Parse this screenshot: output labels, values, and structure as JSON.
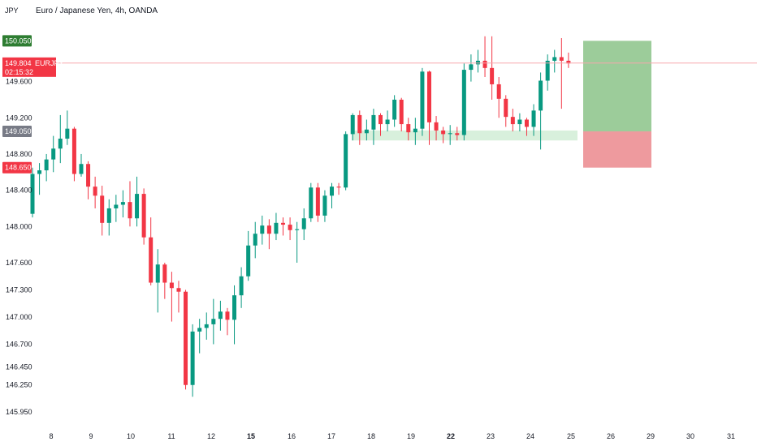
{
  "header": {
    "unit": "JPY",
    "title": "Euro / Japanese Yen, 4h, OANDA"
  },
  "colors": {
    "up": "#089981",
    "down": "#f23645",
    "zone": "#d8f0dc",
    "profit": "#9ccc9a",
    "loss": "#ee9a9e",
    "last_price_badge": "#f23645",
    "green_badge": "#2e7d32",
    "grey_badge": "#787b86"
  },
  "badges": {
    "target": {
      "value": "150.050",
      "price": 150.05
    },
    "last": {
      "value": "149.804",
      "symbol": "EURJPY",
      "countdown": "02:15:32",
      "price": 149.804
    },
    "entry": {
      "value": "149.050",
      "price": 149.05
    },
    "stop": {
      "value": "148.650",
      "price": 148.65
    }
  },
  "chart_data": {
    "type": "candlestick",
    "title": "Euro / Japanese Yen, 4h, OANDA",
    "ylabel": "JPY",
    "ylim": [
      145.8,
      150.25
    ],
    "y_ticks": [
      "145.950",
      "146.250",
      "146.450",
      "146.700",
      "147.000",
      "147.300",
      "147.600",
      "148.000",
      "148.400",
      "148.800",
      "149.200",
      "149.600"
    ],
    "x_ticks": [
      {
        "label": "8",
        "bold": false
      },
      {
        "label": "9",
        "bold": false
      },
      {
        "label": "10",
        "bold": false
      },
      {
        "label": "11",
        "bold": false
      },
      {
        "label": "12",
        "bold": false
      },
      {
        "label": "15",
        "bold": true
      },
      {
        "label": "16",
        "bold": false
      },
      {
        "label": "17",
        "bold": false
      },
      {
        "label": "18",
        "bold": false
      },
      {
        "label": "19",
        "bold": false
      },
      {
        "label": "22",
        "bold": true
      },
      {
        "label": "23",
        "bold": false
      },
      {
        "label": "24",
        "bold": false
      },
      {
        "label": "25",
        "bold": false
      },
      {
        "label": "26",
        "bold": false
      },
      {
        "label": "29",
        "bold": false
      },
      {
        "label": "30",
        "bold": false
      },
      {
        "label": "31",
        "bold": false
      }
    ],
    "candles": [
      [
        148.14,
        148.58,
        148.65,
        148.1
      ],
      [
        148.58,
        148.62,
        148.7,
        148.35
      ],
      [
        148.62,
        148.74,
        148.8,
        148.5
      ],
      [
        148.74,
        148.86,
        149.0,
        148.6
      ],
      [
        148.86,
        148.97,
        149.23,
        148.7
      ],
      [
        148.97,
        149.08,
        149.28,
        148.9
      ],
      [
        149.08,
        148.58,
        149.1,
        148.5
      ],
      [
        148.58,
        148.69,
        148.8,
        148.55
      ],
      [
        148.69,
        148.44,
        148.72,
        148.3
      ],
      [
        148.44,
        148.34,
        148.55,
        148.2
      ],
      [
        148.34,
        148.04,
        148.45,
        147.9
      ],
      [
        148.04,
        148.2,
        148.3,
        147.9
      ],
      [
        148.2,
        148.24,
        148.35,
        148.05
      ],
      [
        148.24,
        148.27,
        148.4,
        148.1
      ],
      [
        148.27,
        148.09,
        148.5,
        148.0
      ],
      [
        148.09,
        148.36,
        148.55,
        148.0
      ],
      [
        148.36,
        147.88,
        148.42,
        147.8
      ],
      [
        147.88,
        147.38,
        148.1,
        147.35
      ],
      [
        147.38,
        147.58,
        147.75,
        147.05
      ],
      [
        147.58,
        147.38,
        147.6,
        147.2
      ],
      [
        147.38,
        147.32,
        147.5,
        146.95
      ],
      [
        147.32,
        147.28,
        147.4,
        147.05
      ],
      [
        147.28,
        146.25,
        147.3,
        146.2
      ],
      [
        146.25,
        146.84,
        146.92,
        146.12
      ],
      [
        146.84,
        146.88,
        146.98,
        146.6
      ],
      [
        146.88,
        146.92,
        147.05,
        146.75
      ],
      [
        146.92,
        146.98,
        147.2,
        146.7
      ],
      [
        146.98,
        147.06,
        147.18,
        146.85
      ],
      [
        147.06,
        146.97,
        147.1,
        146.8
      ],
      [
        146.97,
        147.24,
        147.35,
        146.7
      ],
      [
        147.24,
        147.45,
        147.55,
        147.1
      ],
      [
        147.45,
        147.79,
        147.95,
        147.4
      ],
      [
        147.79,
        147.92,
        148.05,
        147.65
      ],
      [
        147.92,
        148.01,
        148.12,
        147.8
      ],
      [
        148.01,
        147.92,
        148.08,
        147.75
      ],
      [
        147.92,
        148.04,
        148.15,
        147.85
      ],
      [
        148.04,
        148.02,
        148.1,
        147.9
      ],
      [
        148.02,
        147.96,
        148.1,
        147.85
      ],
      [
        147.96,
        147.97,
        148.05,
        147.6
      ],
      [
        147.97,
        148.09,
        148.2,
        147.85
      ],
      [
        148.09,
        148.43,
        148.48,
        148.05
      ],
      [
        148.43,
        148.12,
        148.48,
        148.05
      ],
      [
        148.12,
        148.34,
        148.4,
        148.05
      ],
      [
        148.34,
        148.44,
        148.48,
        148.2
      ],
      [
        148.44,
        148.43,
        148.48,
        148.35
      ],
      [
        148.43,
        149.02,
        149.05,
        148.4
      ],
      [
        149.02,
        149.23,
        149.25,
        148.95
      ],
      [
        149.23,
        149.03,
        149.28,
        148.9
      ],
      [
        149.03,
        149.07,
        149.18,
        148.95
      ],
      [
        149.07,
        149.23,
        149.3,
        148.9
      ],
      [
        149.23,
        149.13,
        149.25,
        149.0
      ],
      [
        149.13,
        149.18,
        149.28,
        149.05
      ],
      [
        149.18,
        149.4,
        149.45,
        149.1
      ],
      [
        149.4,
        149.13,
        149.42,
        149.05
      ],
      [
        149.13,
        149.04,
        149.2,
        148.95
      ],
      [
        149.04,
        149.08,
        149.2,
        148.9
      ],
      [
        149.08,
        149.71,
        149.75,
        149.0
      ],
      [
        149.71,
        149.15,
        149.72,
        148.9
      ],
      [
        149.15,
        149.06,
        149.22,
        148.95
      ],
      [
        149.06,
        149.02,
        149.1,
        148.92
      ],
      [
        149.02,
        149.03,
        149.12,
        148.9
      ],
      [
        149.03,
        149.01,
        149.1,
        148.95
      ],
      [
        149.01,
        149.73,
        149.8,
        148.95
      ],
      [
        149.73,
        149.79,
        149.9,
        149.6
      ],
      [
        149.79,
        149.83,
        149.95,
        149.7
      ],
      [
        149.83,
        149.75,
        150.1,
        149.65
      ],
      [
        149.75,
        149.57,
        150.1,
        149.4
      ],
      [
        149.57,
        149.41,
        149.65,
        149.2
      ],
      [
        149.41,
        149.21,
        149.45,
        149.1
      ],
      [
        149.21,
        149.13,
        149.3,
        149.05
      ],
      [
        149.13,
        149.18,
        149.25,
        149.05
      ],
      [
        149.18,
        149.1,
        149.2,
        149.0
      ],
      [
        149.1,
        149.28,
        149.35,
        149.0
      ],
      [
        149.28,
        149.61,
        149.7,
        148.85
      ],
      [
        149.61,
        149.83,
        149.9,
        149.5
      ],
      [
        149.83,
        149.87,
        149.95,
        149.7
      ],
      [
        149.87,
        149.83,
        150.08,
        149.3
      ],
      [
        149.83,
        149.8,
        149.92,
        149.75
      ]
    ],
    "support_zone": [
      148.95,
      149.06
    ],
    "position": {
      "target": 150.05,
      "entry": 149.05,
      "stop": 148.65
    }
  }
}
